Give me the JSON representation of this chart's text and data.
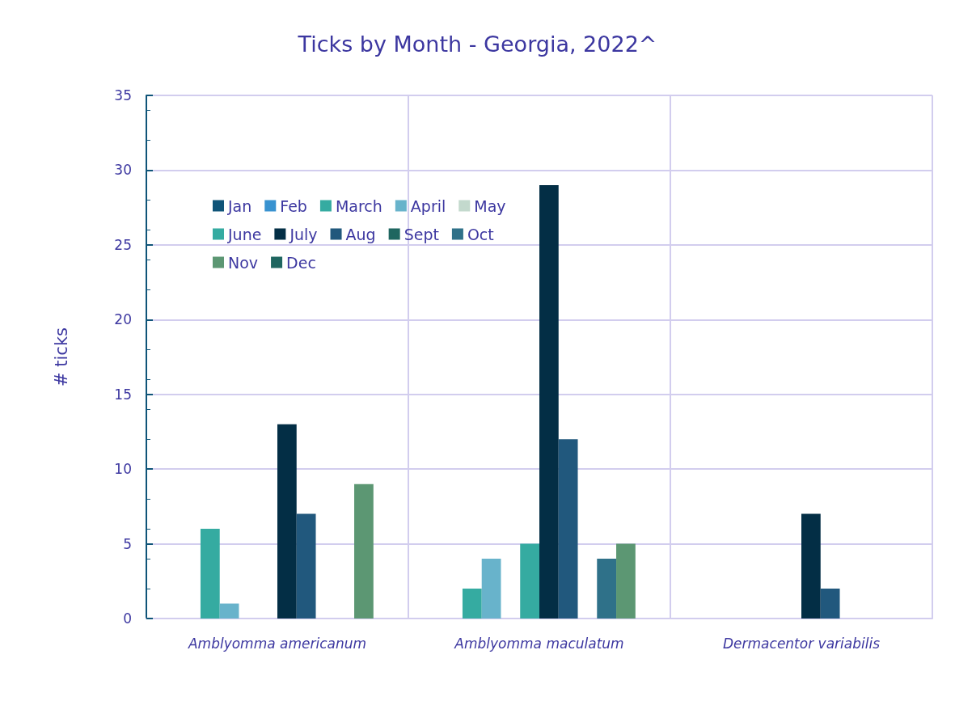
{
  "chart_data": {
    "type": "bar",
    "title": "Ticks by Month - Georgia, 2022^",
    "ylabel": "# ticks",
    "categories": [
      "Amblyomma americanum",
      "Amblyomma maculatum",
      "Dermacentor variabilis"
    ],
    "series": [
      {
        "name": "Jan",
        "color": "#0f5478",
        "values": [
          0,
          0,
          0
        ]
      },
      {
        "name": "Feb",
        "color": "#3892d0",
        "values": [
          0,
          0,
          0
        ]
      },
      {
        "name": "March",
        "color": "#35aba1",
        "values": [
          6,
          2,
          0
        ]
      },
      {
        "name": "April",
        "color": "#68b3cb",
        "values": [
          1,
          4,
          0
        ]
      },
      {
        "name": "May",
        "color": "#c3d9cd",
        "values": [
          0,
          0,
          0
        ]
      },
      {
        "name": "June",
        "color": "#35aba1",
        "values": [
          0,
          5,
          0
        ]
      },
      {
        "name": "July",
        "color": "#032e45",
        "values": [
          13,
          29,
          7
        ]
      },
      {
        "name": "Aug",
        "color": "#21587d",
        "values": [
          7,
          12,
          2
        ]
      },
      {
        "name": "Sept",
        "color": "#1f6660",
        "values": [
          0,
          0,
          0
        ]
      },
      {
        "name": "Oct",
        "color": "#2f7189",
        "values": [
          0,
          4,
          0
        ]
      },
      {
        "name": "Nov",
        "color": "#5c9773",
        "values": [
          9,
          5,
          0
        ]
      },
      {
        "name": "Dec",
        "color": "#1f6660",
        "values": [
          0,
          0,
          0
        ]
      }
    ],
    "ylim": [
      0,
      35
    ],
    "yticks": [
      0,
      5,
      10,
      15,
      20,
      25,
      30,
      35
    ],
    "grid": true,
    "legend": "top left"
  }
}
